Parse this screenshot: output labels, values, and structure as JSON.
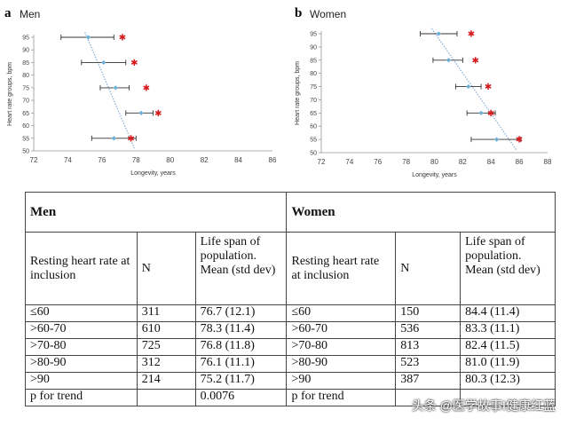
{
  "panel_a": {
    "letter": "a",
    "title": "Men"
  },
  "panel_b": {
    "letter": "b",
    "title": "Women"
  },
  "chart_data": [
    {
      "type": "scatter",
      "title": "Men",
      "xlabel": "Longevity, years",
      "ylabel": "Heart rate groups, bpm",
      "xlim": [
        72,
        86
      ],
      "ylim": [
        50,
        95
      ],
      "xticks": [
        72,
        74,
        76,
        78,
        80,
        82,
        84,
        86
      ],
      "yticks": [
        50,
        55,
        60,
        65,
        70,
        75,
        80,
        85,
        90,
        95
      ],
      "series": [
        {
          "y": [
            95,
            85,
            75,
            65,
            55
          ],
          "x": [
            75.2,
            76.1,
            76.8,
            78.3,
            76.7
          ],
          "err_low": [
            73.6,
            74.8,
            75.9,
            77.4,
            75.4
          ],
          "err_high": [
            76.7,
            77.4,
            77.6,
            79.0,
            78.0
          ],
          "color": "#6baed6"
        },
        {
          "y": [
            95,
            85,
            75,
            65,
            55
          ],
          "x": [
            77.2,
            77.9,
            78.6,
            79.3,
            77.7
          ],
          "color": "#d7191c"
        }
      ],
      "trendline": {
        "from": [
          75.0,
          97
        ],
        "to": [
          77.9,
          51
        ]
      }
    },
    {
      "type": "scatter",
      "title": "Women",
      "xlabel": "Longevity, years",
      "ylabel": "Heart rate groups, bpm",
      "xlim": [
        72,
        88
      ],
      "ylim": [
        50,
        95
      ],
      "xticks": [
        72,
        74,
        76,
        78,
        80,
        82,
        84,
        86,
        88
      ],
      "yticks": [
        50,
        55,
        60,
        65,
        70,
        75,
        80,
        85,
        90,
        95
      ],
      "series": [
        {
          "y": [
            95,
            85,
            75,
            65,
            55
          ],
          "x": [
            80.3,
            81.0,
            82.4,
            83.3,
            84.4
          ],
          "err_low": [
            79.0,
            79.9,
            81.5,
            82.3,
            82.6
          ],
          "err_high": [
            81.6,
            82.0,
            83.3,
            84.3,
            86.1
          ],
          "color": "#6baed6"
        },
        {
          "y": [
            95,
            85,
            75,
            65,
            55
          ],
          "x": [
            82.6,
            82.9,
            83.8,
            84.0,
            86.0
          ],
          "color": "#d7191c"
        }
      ],
      "trendline": {
        "from": [
          79.8,
          97
        ],
        "to": [
          85.8,
          51
        ]
      }
    },
    {
      "type": "table",
      "headers": {
        "men": "Men",
        "women": "Women"
      },
      "columns": {
        "group": "Resting heart rate at inclusion",
        "n": "N",
        "life": "Life span of population. Mean (std dev)"
      },
      "rows": [
        {
          "m_group": "≤60",
          "m_n": "311",
          "m_life": "76.7 (12.1)",
          "w_group": "≤60",
          "w_n": "150",
          "w_life": "84.4 (11.4)"
        },
        {
          "m_group": ">60-70",
          "m_n": "610",
          "m_life": "78.3 (11.4)",
          "w_group": ">60-70",
          "w_n": "536",
          "w_life": "83.3 (11.1)"
        },
        {
          "m_group": ">70-80",
          "m_n": "725",
          "m_life": "76.8 (11.8)",
          "w_group": ">70-80",
          "w_n": "813",
          "w_life": "82.4 (11.5)"
        },
        {
          "m_group": ">80-90",
          "m_n": "312",
          "m_life": "76.1 (11.1)",
          "w_group": ">80-90",
          "w_n": "523",
          "w_life": "81.0 (11.9)"
        },
        {
          "m_group": ">90",
          "m_n": "214",
          "m_life": "75.2 (11.7)",
          "w_group": ">90",
          "w_n": "387",
          "w_life": "80.3 (12.3)"
        },
        {
          "m_group": "p for trend",
          "m_n": "",
          "m_life": "0.0076",
          "w_group": "p for trend",
          "w_n": "",
          "w_life": ""
        }
      ]
    }
  ],
  "watermark": "头条 @医学故事Ⅰ健康红蓝"
}
